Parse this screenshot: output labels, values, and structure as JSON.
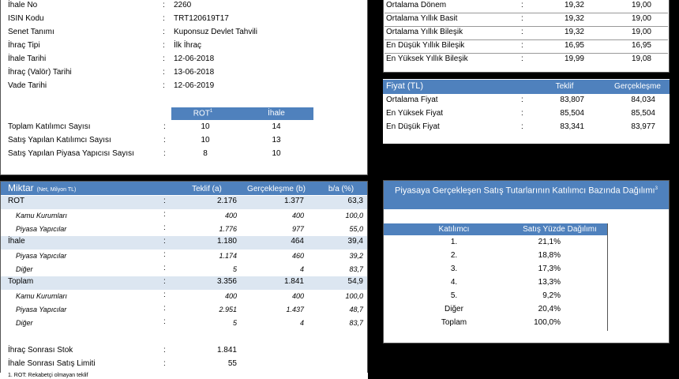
{
  "info": {
    "rows": [
      {
        "label": "İhale No",
        "value": "2260"
      },
      {
        "label": "ISIN Kodu",
        "value": "TRT120619T17"
      },
      {
        "label": "Senet Tanımı",
        "value": "Kuponsuz Devlet Tahvili"
      },
      {
        "label": "İhraç Tipi",
        "value": "İlk İhraç"
      },
      {
        "label": "İhale Tarihi",
        "value": "12-06-2018"
      },
      {
        "label": "İhraç (Valör) Tarihi",
        "value": "13-06-2018"
      },
      {
        "label": "Vade Tarihi",
        "value": "12-06-2019"
      }
    ],
    "count_headers": {
      "rot": "ROT",
      "rot_sup": "1",
      "ihale": "İhale"
    },
    "counts": [
      {
        "label": "Toplam Katılımcı Sayısı",
        "rot": "10",
        "ihale": "14"
      },
      {
        "label": "Satış Yapılan Katılımcı Sayısı",
        "rot": "10",
        "ihale": "13"
      },
      {
        "label": "Satış Yapılan Piyasa Yapıcısı Sayısı",
        "rot": "8",
        "ihale": "10"
      }
    ]
  },
  "rates": [
    {
      "label": "Ortalama Dönem",
      "teklif": "19,32",
      "gerc": "19,00"
    },
    {
      "label": "Ortalama Yıllık Basit",
      "teklif": "19,32",
      "gerc": "19,00"
    },
    {
      "label": "Ortalama Yıllık Bileşik",
      "teklif": "19,32",
      "gerc": "19,00"
    },
    {
      "label": "En Düşük Yıllık Bileşik",
      "teklif": "16,95",
      "gerc": "16,95"
    },
    {
      "label": "En Yüksek Yıllık Bileşik",
      "teklif": "19,99",
      "gerc": "19,08"
    }
  ],
  "price": {
    "title": "Fiyat (TL)",
    "col_teklif": "Teklif",
    "col_gerc": "Gerçekleşme",
    "rows": [
      {
        "label": "Ortalama Fiyat",
        "teklif": "83,807",
        "gerc": "84,034"
      },
      {
        "label": "En Yüksek Fiyat",
        "teklif": "85,504",
        "gerc": "85,504"
      },
      {
        "label": "En Düşük Fiyat",
        "teklif": "83,341",
        "gerc": "83,977"
      }
    ]
  },
  "miktar": {
    "title": "Miktar",
    "title_note": "(Net, Milyon TL)",
    "col_teklif": "Teklif (a)",
    "col_gerc": "Gerçekleşme (b)",
    "col_ratio": "b/a (%)",
    "rows": [
      {
        "label": "ROT",
        "teklif": "2.176",
        "gerc": "1.377",
        "ratio": "63,3",
        "kind": "main"
      },
      {
        "label": "Kamu Kurumları",
        "teklif": "400",
        "gerc": "400",
        "ratio": "100,0",
        "kind": "sub"
      },
      {
        "label": "Piyasa Yapıcılar",
        "teklif": "1.776",
        "gerc": "977",
        "ratio": "55,0",
        "kind": "sub"
      },
      {
        "label": "İhale",
        "teklif": "1.180",
        "gerc": "464",
        "ratio": "39,4",
        "kind": "main"
      },
      {
        "label": "Piyasa Yapıcılar",
        "teklif": "1.174",
        "gerc": "460",
        "ratio": "39,2",
        "kind": "sub"
      },
      {
        "label": "Diğer",
        "teklif": "5",
        "gerc": "4",
        "ratio": "83,7",
        "kind": "sub"
      },
      {
        "label": "Toplam",
        "teklif": "3.356",
        "gerc": "1.841",
        "ratio": "54,9",
        "kind": "main"
      },
      {
        "label": "Kamu Kurumları",
        "teklif": "400",
        "gerc": "400",
        "ratio": "100,0",
        "kind": "sub"
      },
      {
        "label": "Piyasa Yapıcılar",
        "teklif": "2.951",
        "gerc": "1.437",
        "ratio": "48,7",
        "kind": "sub"
      },
      {
        "label": "Diğer",
        "teklif": "5",
        "gerc": "4",
        "ratio": "83,7",
        "kind": "sub"
      }
    ],
    "stock": [
      {
        "label": "İhraç Sonrası Stok",
        "value": "1.841"
      },
      {
        "label": "İhale Sonrası Satış Limiti",
        "value": "55"
      }
    ]
  },
  "distribution": {
    "title": "Piyasaya Gerçekleşen Satış Tutarlarının Katılımcı Bazında Dağılımı",
    "title_sup": "3",
    "col_participant": "Katılımcı",
    "col_share": "Satış Yüzde Dağılımı",
    "rows": [
      {
        "participant": "1.",
        "share": "21,1%"
      },
      {
        "participant": "2.",
        "share": "18,8%"
      },
      {
        "participant": "3.",
        "share": "17,3%"
      },
      {
        "participant": "4.",
        "share": "13,3%"
      },
      {
        "participant": "5.",
        "share": "9,2%"
      },
      {
        "participant": "Diğer",
        "share": "20,4%"
      },
      {
        "participant": "Toplam",
        "share": "100,0%"
      }
    ]
  },
  "footnote": "1. ROT: Rekabetçi olmayan teklif",
  "colon": ":",
  "colors": {
    "header_blue": "#4f81bd",
    "band": "#dce6f1"
  }
}
